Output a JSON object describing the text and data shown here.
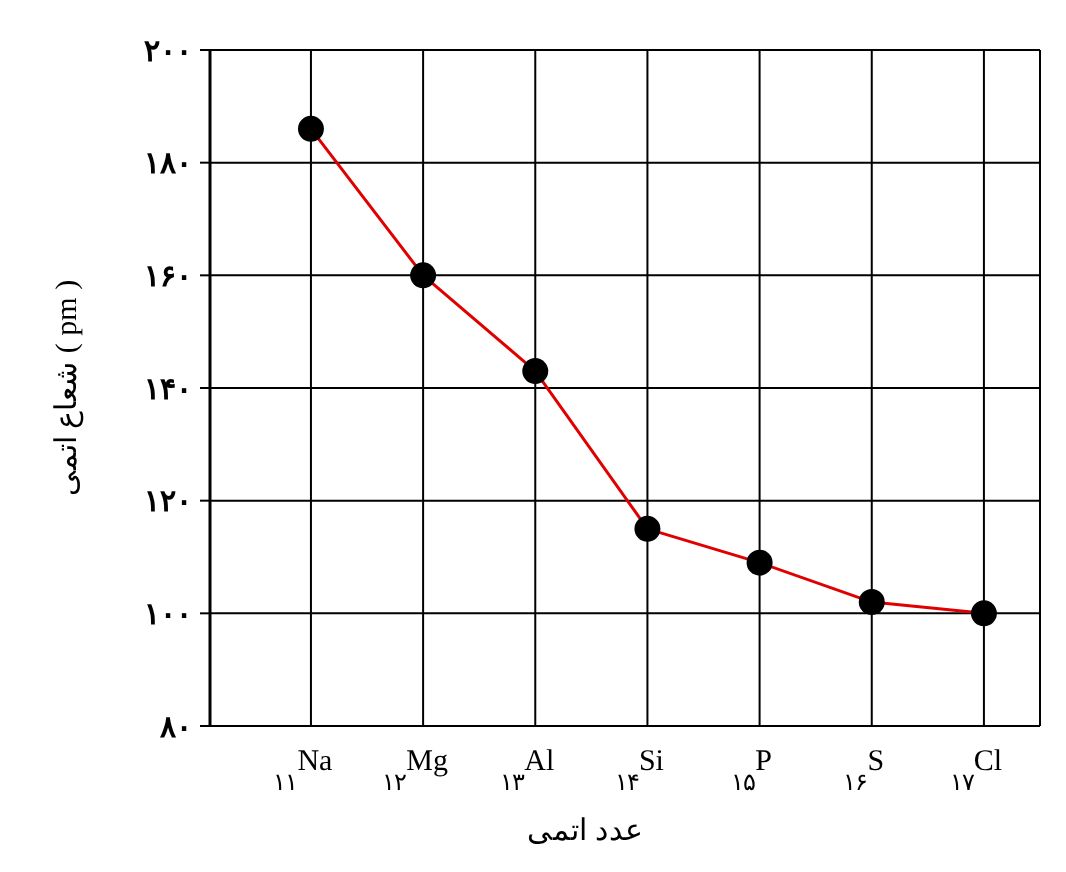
{
  "chart_data": {
    "type": "line",
    "xlabel": "عدد اتمی",
    "ylabel": "شعاع اتمی ( pm )",
    "categories": [
      "$_{۱۱}$Na",
      "$_{۱۲}$Mg",
      "$_{۱۳}$Al",
      "$_{۱۴}$Si",
      "$_{۱۵}$P",
      "$_{۱۶}$S",
      "$_{۱۷}$Cl"
    ],
    "series": [
      {
        "color": "#e00000",
        "values": [
          186,
          160,
          143,
          115,
          109,
          102,
          100
        ]
      }
    ],
    "ylim": [
      80,
      200
    ],
    "yticks": [
      {
        "value": 80,
        "label": "۸۰"
      },
      {
        "value": 100,
        "label": "۱۰۰"
      },
      {
        "value": 120,
        "label": "۱۲۰"
      },
      {
        "value": 140,
        "label": "۱۴۰"
      },
      {
        "value": 160,
        "label": "۱۶۰"
      },
      {
        "value": 180,
        "label": "۱۸۰"
      },
      {
        "value": 200,
        "label": "۲۰۰"
      }
    ],
    "grid": true,
    "marker": "circle",
    "line_style": "solid"
  }
}
